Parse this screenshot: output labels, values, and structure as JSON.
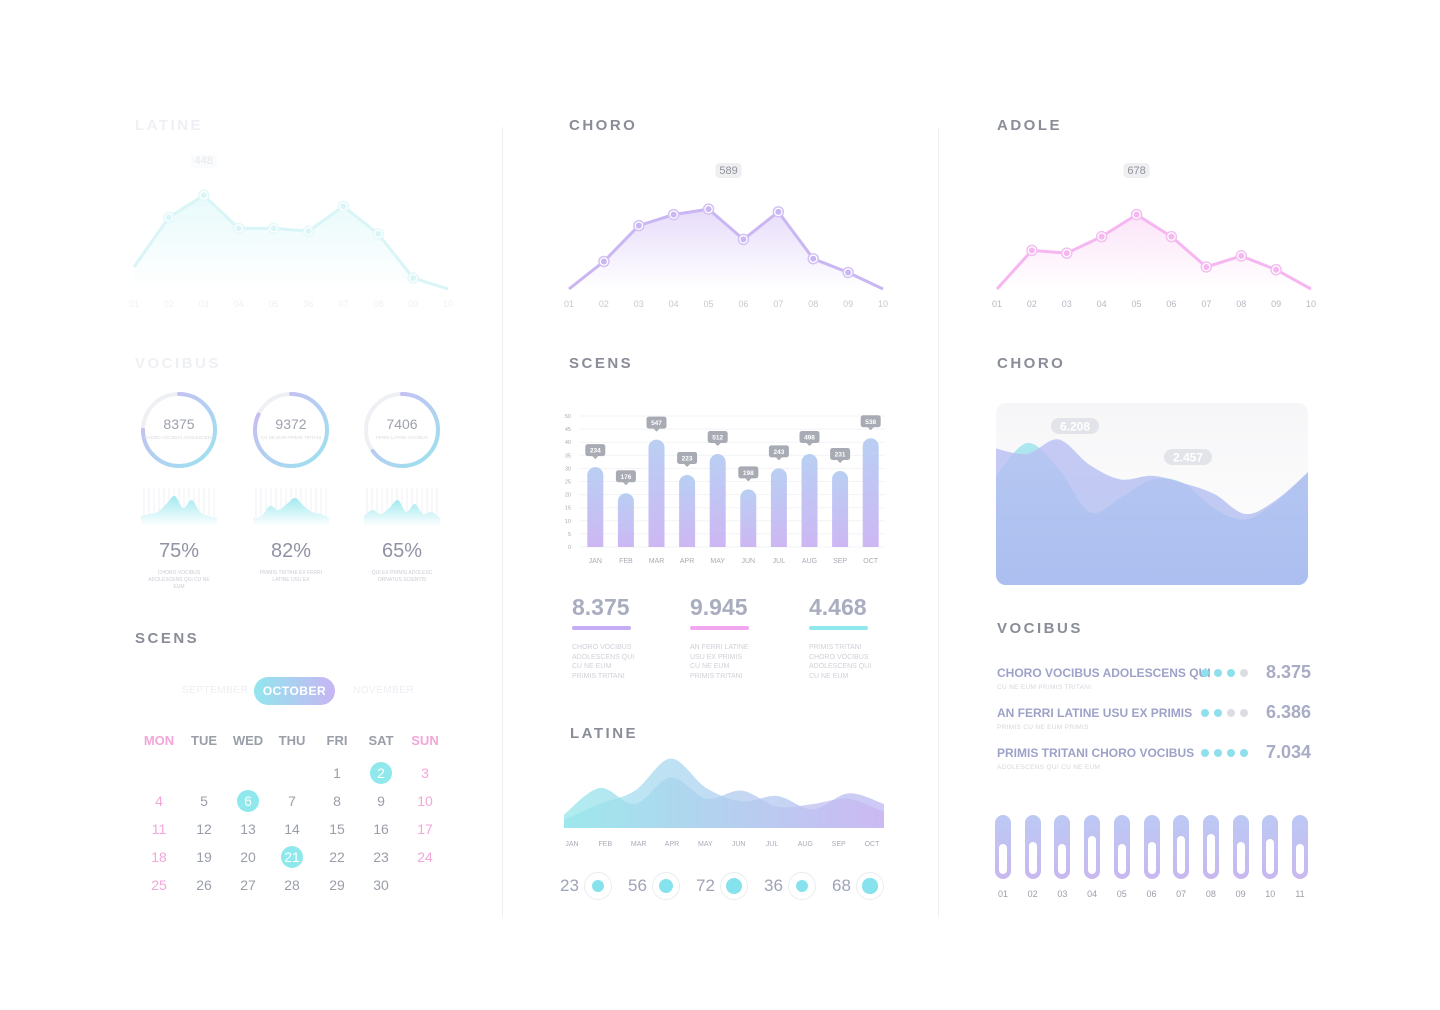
{
  "titles": {
    "latine_top": "LATINE",
    "choro_top": "CHORO",
    "adole": "ADOLE",
    "vocibus_left": "VOCIBUS",
    "scens_mid": "SCENS",
    "choro_right": "CHORO",
    "scens_left": "SCENS",
    "vocibus_right": "VOCIBUS",
    "latine_mid": "LATINE"
  },
  "colors": {
    "cyan": "#8ee8ec",
    "purple": "#c3aef3",
    "pink": "#f2a6f0",
    "title": "#8a8d98"
  },
  "chart_data": [
    {
      "type": "line",
      "id": "latine-line",
      "x": [
        "01",
        "02",
        "03",
        "04",
        "05",
        "06",
        "07",
        "08",
        "09",
        "10"
      ],
      "series": [
        {
          "values": [
            8,
            26,
            34,
            22,
            22,
            21,
            30,
            20,
            4,
            0
          ]
        }
      ],
      "callout": "448",
      "ylim": [
        0,
        45
      ]
    },
    {
      "type": "line",
      "id": "choro-line",
      "x": [
        "01",
        "02",
        "03",
        "04",
        "05",
        "06",
        "07",
        "08",
        "09",
        "10"
      ],
      "series": [
        {
          "values": [
            0,
            10,
            23,
            27,
            29,
            18,
            28,
            11,
            6,
            0
          ]
        }
      ],
      "callout": "589",
      "ylim": [
        0,
        45
      ]
    },
    {
      "type": "line",
      "id": "adole-line",
      "x": [
        "01",
        "02",
        "03",
        "04",
        "05",
        "06",
        "07",
        "08",
        "09",
        "10"
      ],
      "series": [
        {
          "values": [
            0,
            14,
            13,
            19,
            27,
            19,
            8,
            12,
            7,
            0
          ]
        }
      ],
      "callout": "678",
      "ylim": [
        0,
        45
      ]
    },
    {
      "type": "bar",
      "id": "scens-bar",
      "categories": [
        "JAN",
        "FEB",
        "MAR",
        "APR",
        "MAY",
        "JUN",
        "JUL",
        "AUG",
        "SEP",
        "OCT"
      ],
      "values": [
        30.5,
        20.5,
        41,
        27.5,
        35.5,
        22,
        30,
        35.5,
        29,
        41.5
      ],
      "data_labels": [
        "234",
        "176",
        "547",
        "223",
        "512",
        "198",
        "243",
        "498",
        "231",
        "538"
      ],
      "yticks": [
        "0",
        "5",
        "10",
        "15",
        "20",
        "25",
        "30",
        "35",
        "40",
        "45",
        "50"
      ],
      "ylim": [
        0,
        50
      ]
    },
    {
      "type": "area",
      "id": "choro-area",
      "x": [
        0,
        1,
        2,
        3,
        4,
        5,
        6,
        7,
        8,
        9,
        10
      ],
      "series": [
        {
          "values": [
            75,
            72,
            80,
            66,
            58,
            60,
            56,
            50,
            39,
            47,
            62
          ]
        },
        {
          "values": [
            60,
            78,
            64,
            40,
            48,
            58,
            56,
            42,
            36,
            46,
            62
          ]
        }
      ],
      "labels": [
        "6.208",
        "2.457"
      ],
      "ylim": [
        0,
        100
      ]
    },
    {
      "type": "area",
      "id": "latine-area",
      "x": [
        "JAN",
        "FEB",
        "MAR",
        "APR",
        "MAY",
        "JUN",
        "JUL",
        "AUG",
        "SEP",
        "OCT"
      ],
      "series": [
        {
          "values": [
            10,
            30,
            18,
            38,
            22,
            28,
            16,
            18,
            22,
            12
          ]
        },
        {
          "values": [
            6,
            18,
            28,
            52,
            30,
            20,
            24,
            14,
            26,
            18
          ]
        }
      ],
      "ylim": [
        0,
        60
      ]
    }
  ],
  "gauges": [
    {
      "value": "8375",
      "caption": "CHORO VOCIBUS ADOLESCENS",
      "percent": "75%",
      "percent_caption": "CHORO VOCIBUS ADOLESCENS QUI CU NE EUM",
      "fill": 0.75
    },
    {
      "value": "9372",
      "caption": "CU NE EUM PRIMIS TRITANI",
      "percent": "82%",
      "percent_caption": "PRIMIS TRITANI EX FERRI LATINE USU EX",
      "fill": 0.82
    },
    {
      "value": "7406",
      "caption": "FERRI LATINE VOCIBUS",
      "percent": "65%",
      "percent_caption": "QUI EX PRIMIS ADOLESC ORNATUS SCIENTIS",
      "fill": 0.65
    }
  ],
  "calendar": {
    "months": [
      "SEPTEMBER",
      "OCTOBER",
      "NOVEMBER"
    ],
    "weekdays": [
      "MON",
      "TUE",
      "WED",
      "THU",
      "FRI",
      "SAT",
      "SUN"
    ],
    "first_weekday_index": 4,
    "days_in_month": 30,
    "selected": [
      2,
      6,
      21
    ]
  },
  "stats": [
    {
      "value": "8.375",
      "caption": [
        "CHORO VOCIBUS",
        "ADOLESCENS QUI",
        "CU NE EUM",
        "PRIMIS TRITANI"
      ],
      "color": "#c3aef3"
    },
    {
      "value": "9.945",
      "caption": [
        "AN FERRI LATINE",
        "USU EX PRIMIS",
        "CU NE EUM",
        "PRIMIS TRITANI"
      ],
      "color": "#f2a6f0"
    },
    {
      "value": "4.468",
      "caption": [
        "PRIMIS TRITANI",
        "CHORO VOCIBUS",
        "ADOLESCENS QUI",
        "CU NE EUM"
      ],
      "color": "#8ee8ec"
    }
  ],
  "vocibus_rows": [
    {
      "label": "CHORO VOCIBUS ADOLESCENS QUI",
      "sub": "CU NE EUM PRIMIS TRITANI",
      "value": "8.375",
      "dots": 3
    },
    {
      "label": "AN FERRI LATINE USU EX PRIMIS",
      "sub": "PRIMIS CU NE EUM PRIMIS",
      "value": "6.386",
      "dots": 2
    },
    {
      "label": "PRIMIS TRITANI CHORO VOCIBUS",
      "sub": "ADOLESCENS QUI CU NE EUM",
      "value": "7.034",
      "dots": 4
    }
  ],
  "knobs": [
    {
      "value": "23",
      "level": 0.25
    },
    {
      "value": "56",
      "level": 0.5
    },
    {
      "value": "72",
      "level": 0.75
    },
    {
      "value": "36",
      "level": 0.35
    },
    {
      "value": "68",
      "level": 0.65
    }
  ],
  "cylinders": [
    {
      "label": "01",
      "level": 0.55
    },
    {
      "label": "02",
      "level": 0.6
    },
    {
      "label": "03",
      "level": 0.55
    },
    {
      "label": "04",
      "level": 0.7
    },
    {
      "label": "05",
      "level": 0.55
    },
    {
      "label": "06",
      "level": 0.6
    },
    {
      "label": "07",
      "level": 0.7
    },
    {
      "label": "08",
      "level": 0.75
    },
    {
      "label": "09",
      "level": 0.6
    },
    {
      "label": "10",
      "level": 0.65
    },
    {
      "label": "11",
      "level": 0.55
    }
  ]
}
